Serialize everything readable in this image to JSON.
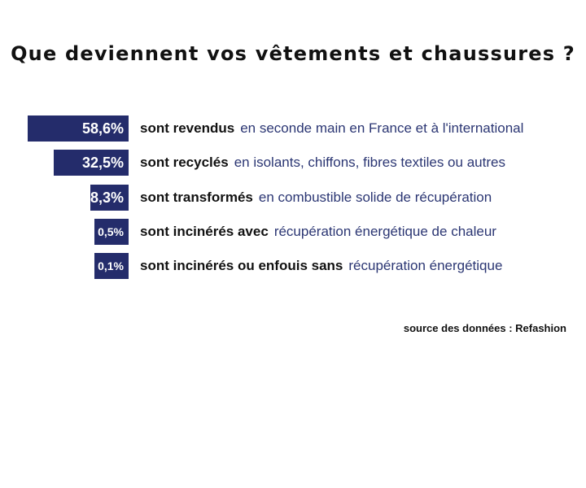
{
  "chart_data": {
    "type": "bar",
    "title": "Que deviennent vos vêtements et chaussures ?",
    "bar_color": "#242c6b",
    "value_labels": [
      "58,6%",
      "32,5%",
      "8,3%",
      "0,5%",
      "0,1%"
    ],
    "values": [
      58.6,
      32.5,
      8.3,
      0.5,
      0.1
    ],
    "categories": [
      {
        "bold": "sont revendus",
        "rest": "en seconde main en France et à l'international"
      },
      {
        "bold": "sont recyclés",
        "rest": "en isolants, chiffons, fibres textiles ou autres"
      },
      {
        "bold": "sont transformés",
        "rest": "en combustible solide de récupération"
      },
      {
        "bold": "sont incinérés avec",
        "rest": "récupération énergétique de chaleur"
      },
      {
        "bold": "sont incinérés ou enfouis sans",
        "rest": "récupération énergétique"
      }
    ],
    "source": "source des données : Refashion"
  }
}
